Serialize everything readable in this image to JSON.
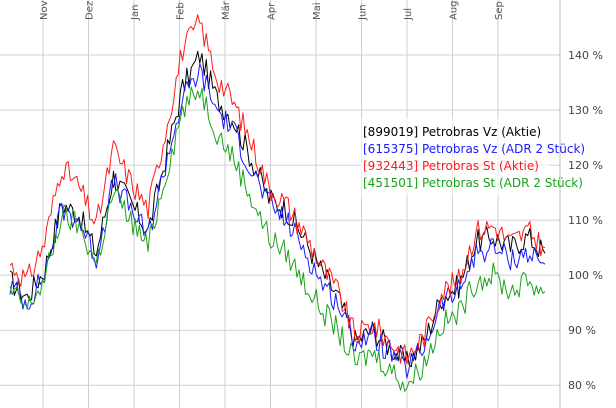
{
  "chart_data": {
    "type": "line",
    "x_labels": [
      "Nov",
      "Dez",
      "Jan",
      "Feb",
      "Mär",
      "Apr",
      "Mai",
      "Jun",
      "Jul",
      "Aug",
      "Sep"
    ],
    "y_ticks": [
      "80 %",
      "90 %",
      "100 %",
      "110 %",
      "120 %",
      "130 %",
      "140 %"
    ],
    "y_tick_values": [
      80,
      90,
      100,
      110,
      120,
      130,
      140
    ],
    "ylim": [
      78.5,
      150
    ],
    "grid": true,
    "legend_position": "right",
    "series": [
      {
        "name": "[899019] Petrobras Vz (Aktie)",
        "color": "#000000",
        "values": [
          99,
          96,
          101,
          113,
          111,
          104,
          118,
          113,
          108,
          121,
          134,
          140,
          132,
          128,
          121,
          114,
          112,
          107,
          101,
          96,
          88,
          90,
          87,
          84,
          88,
          96,
          98,
          106,
          107,
          105,
          107,
          104
        ]
      },
      {
        "name": "[615375] Petrobras Vz (ADR 2 Stück)",
        "color": "#1a1aff",
        "values": [
          98,
          95,
          100,
          112,
          110,
          103,
          117,
          112,
          107,
          120,
          132,
          137,
          130,
          126,
          119,
          113,
          110,
          105,
          99,
          95,
          88,
          89,
          86,
          83,
          87,
          95,
          97,
          104,
          105,
          103,
          104,
          102
        ]
      },
      {
        "name": "[932443] Petrobras St (Aktie)",
        "color": "#ff1a1a",
        "values": [
          102,
          99,
          106,
          120,
          116,
          109,
          123,
          117,
          112,
          126,
          141,
          146,
          136,
          131,
          124,
          116,
          113,
          108,
          102,
          97,
          89,
          91,
          88,
          85,
          89,
          97,
          99,
          108,
          109,
          106,
          108,
          105
        ]
      },
      {
        "name": "[451501] Petrobras St (ADR 2 Stück)",
        "color": "#19a319",
        "values": [
          97,
          94,
          99,
          111,
          109,
          102,
          115,
          110,
          105,
          118,
          130,
          134,
          126,
          121,
          114,
          107,
          104,
          99,
          94,
          90,
          84,
          86,
          83,
          80,
          84,
          91,
          93,
          99,
          100,
          97,
          99,
          97
        ]
      }
    ]
  }
}
